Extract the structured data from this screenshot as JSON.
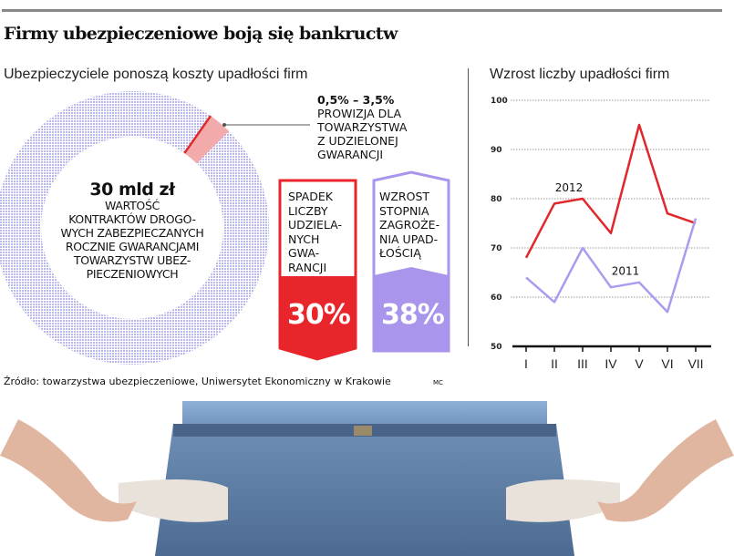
{
  "title": "Firmy ubezpieczeniowe boją się bankructw",
  "left": {
    "subtitle": "Ubezpieczyciele ponoszą koszty upadłości firm",
    "donut": {
      "value": "30 mld zł",
      "lines": [
        "WARTOŚĆ",
        "KONTRAKTÓW DROGO-",
        "WYCH ZABEZPIECZANYCH",
        "ROCZNIE GWARANCJAMI",
        "TOWARZYSTW UBEZ-",
        "PIECZENIOWYCH"
      ],
      "ring_color": "#b9b9ee",
      "wedge_color": "#f2aaaa",
      "wedge_line_color": "#e02a2a"
    },
    "commission": {
      "value": "0,5% – 3,5%",
      "lines": [
        "PROWIZJA DLA",
        "TOWARZYSTWA",
        "Z UDZIELONEJ",
        "GWARANCJI"
      ]
    },
    "box_red": {
      "lines": [
        "SPADEK",
        "LICZBY",
        "UDZIELA-",
        "NYCH",
        "GWA-",
        "RANCJI"
      ],
      "value": "30%",
      "color": "#e8252a"
    },
    "box_purple": {
      "lines": [
        "WZROST",
        "STOPNIA",
        "ZAGROŻE-",
        "NIA UPAD-",
        "ŁOŚCIĄ"
      ],
      "value": "38%",
      "color": "#a996ec"
    }
  },
  "source": "Źródło: towarzystwa ubezpieczeniowe, Uniwersytet Ekonomiczny w Krakowie",
  "author": "MC",
  "chart_data": {
    "type": "line",
    "title": "Wzrost liczby upadłości firm",
    "categories": [
      "I",
      "II",
      "III",
      "IV",
      "V",
      "VI",
      "VII"
    ],
    "yticks": [
      "50",
      "60",
      "70",
      "80",
      "90",
      "100"
    ],
    "ylim": [
      50,
      100
    ],
    "grid": true,
    "series": [
      {
        "name": "2012",
        "values": [
          68,
          79,
          80,
          73,
          95,
          77,
          75
        ],
        "color": "#e0282c"
      },
      {
        "name": "2011",
        "values": [
          64,
          59,
          70,
          62,
          63,
          57,
          76
        ],
        "color": "#a99cf0"
      }
    ]
  }
}
